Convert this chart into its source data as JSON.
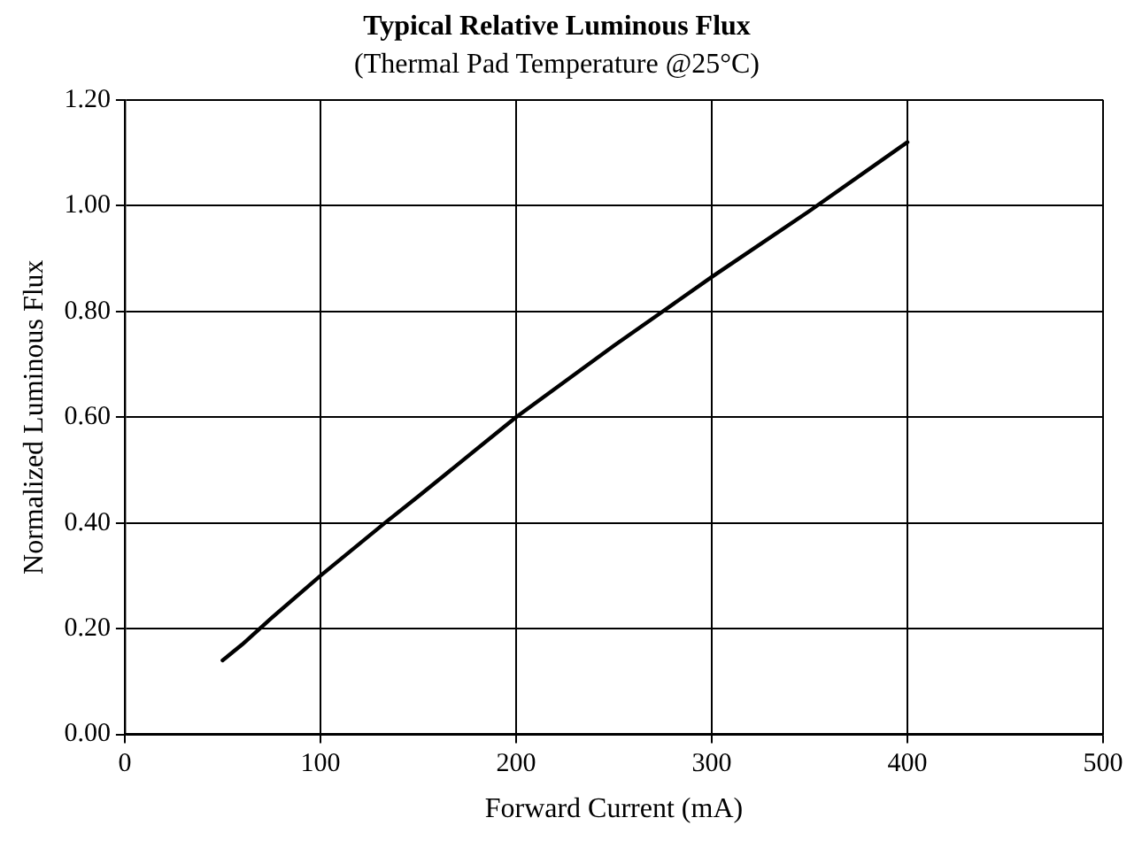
{
  "chart_data": {
    "type": "line",
    "title": "Typical Relative Luminous Flux",
    "subtitle": "(Thermal Pad Temperature @25°C)",
    "xlabel": "Forward Current (mA)",
    "ylabel": "Normalized Luminous Flux",
    "x": [
      50,
      60,
      75,
      100,
      133,
      150,
      200,
      250,
      275,
      300,
      350,
      400
    ],
    "series": [
      {
        "color": "#000000",
        "values": [
          0.14,
          0.17,
          0.22,
          0.3,
          0.4,
          0.45,
          0.6,
          0.735,
          0.8,
          0.865,
          0.99,
          1.12
        ]
      }
    ],
    "xlim": [
      0,
      500
    ],
    "xticks": [
      0,
      100,
      200,
      300,
      400,
      500
    ],
    "ylim": [
      0,
      1.2
    ],
    "yticks": [
      {
        "value": 0,
        "label": "0.00"
      },
      {
        "value": 0.2,
        "label": "0.20"
      },
      {
        "value": 0.4,
        "label": "0.40"
      },
      {
        "value": 0.6,
        "label": "0.60"
      },
      {
        "value": 0.8,
        "label": "0.80"
      },
      {
        "value": 1.0,
        "label": "1.00"
      },
      {
        "value": 1.2,
        "label": "1.20"
      }
    ],
    "grid": true,
    "marker": "none",
    "line_style": "solid"
  }
}
